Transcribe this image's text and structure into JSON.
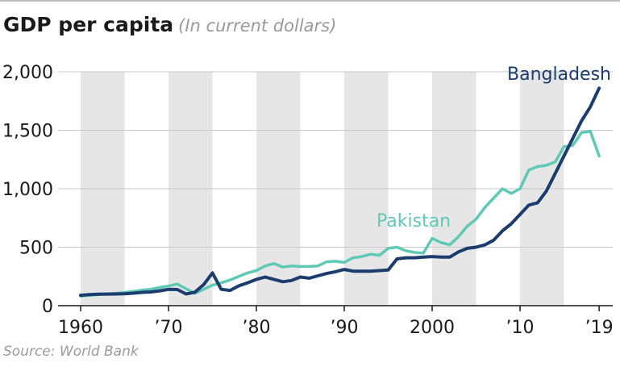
{
  "header": {
    "title": "GDP per capita",
    "subtitle": "(In current dollars)"
  },
  "source": "Source: World Bank",
  "chart_data": {
    "type": "line",
    "title": "GDP per capita",
    "subtitle": "(In current dollars)",
    "xlabel": "",
    "ylabel": "",
    "xlim": [
      1960,
      2019
    ],
    "ylim": [
      0,
      2000
    ],
    "y_ticks": [
      0,
      500,
      1000,
      1500,
      2000
    ],
    "y_tick_labels": [
      "0",
      "500",
      "1,000",
      "1,500",
      "2,000"
    ],
    "x_ticks": [
      1960,
      1970,
      1980,
      1990,
      2000,
      2010,
      2019
    ],
    "x_tick_labels": [
      "1960",
      "’70",
      "’80",
      "’90",
      "2000",
      "’10",
      "’19"
    ],
    "shaded_bands": [
      [
        1960,
        1965
      ],
      [
        1970,
        1975
      ],
      [
        1980,
        1985
      ],
      [
        1990,
        1995
      ],
      [
        2000,
        2005
      ],
      [
        2010,
        2015
      ]
    ],
    "grid": "horizontal",
    "legend": "direct labels",
    "colors": {
      "bangladesh": "#1b3c6e",
      "pakistan": "#5fc9b6",
      "band": "#e6e6e6",
      "grid": "#c8c8c8"
    },
    "x": [
      1960,
      1961,
      1962,
      1963,
      1964,
      1965,
      1966,
      1967,
      1968,
      1969,
      1970,
      1971,
      1972,
      1973,
      1974,
      1975,
      1976,
      1977,
      1978,
      1979,
      1980,
      1981,
      1982,
      1983,
      1984,
      1985,
      1986,
      1987,
      1988,
      1989,
      1990,
      1991,
      1992,
      1993,
      1994,
      1995,
      1996,
      1997,
      1998,
      1999,
      2000,
      2001,
      2002,
      2003,
      2004,
      2005,
      2006,
      2007,
      2008,
      2009,
      2010,
      2011,
      2012,
      2013,
      2014,
      2015,
      2016,
      2017,
      2018,
      2019
    ],
    "series": [
      {
        "name": "Bangladesh",
        "values": [
          89,
          95,
          98,
          99,
          100,
          102,
          107,
          114,
          117,
          127,
          139,
          138,
          100,
          115,
          180,
          280,
          140,
          130,
          170,
          195,
          225,
          245,
          225,
          205,
          215,
          245,
          235,
          255,
          275,
          290,
          310,
          295,
          295,
          295,
          300,
          305,
          400,
          410,
          410,
          415,
          420,
          415,
          415,
          460,
          490,
          500,
          520,
          560,
          640,
          700,
          780,
          860,
          880,
          980,
          1130,
          1280,
          1430,
          1580,
          1700,
          1860
        ]
      },
      {
        "name": "Pakistan",
        "values": [
          82,
          88,
          94,
          100,
          106,
          113,
          122,
          133,
          141,
          155,
          168,
          185,
          145,
          105,
          140,
          175,
          195,
          220,
          250,
          280,
          300,
          340,
          360,
          330,
          340,
          335,
          335,
          340,
          375,
          380,
          370,
          410,
          420,
          440,
          430,
          490,
          500,
          470,
          455,
          450,
          575,
          540,
          520,
          590,
          680,
          740,
          840,
          920,
          1000,
          960,
          1000,
          1160,
          1190,
          1200,
          1230,
          1360,
          1370,
          1480,
          1490,
          1280
        ]
      }
    ],
    "labels": [
      {
        "series": "Bangladesh",
        "text": "Bangladesh"
      },
      {
        "series": "Pakistan",
        "text": "Pakistan"
      }
    ]
  }
}
